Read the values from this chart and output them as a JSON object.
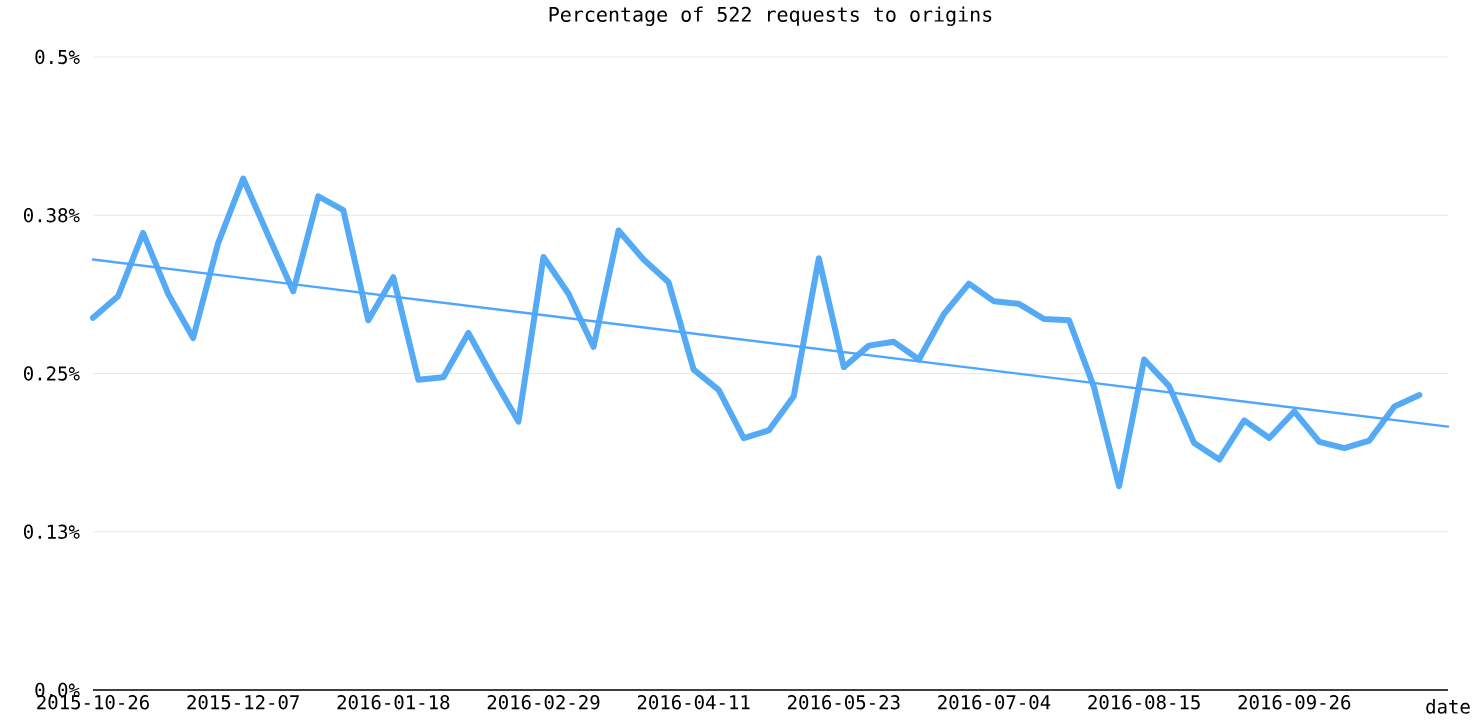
{
  "chart_data": {
    "type": "line",
    "title": "Percentage of 522 requests to origins",
    "xlabel": "date",
    "x": [
      "2015-10-26",
      "2015-11-02",
      "2015-11-09",
      "2015-11-16",
      "2015-11-23",
      "2015-11-30",
      "2015-12-07",
      "2015-12-14",
      "2015-12-21",
      "2015-12-28",
      "2016-01-04",
      "2016-01-11",
      "2016-01-18",
      "2016-01-25",
      "2016-02-01",
      "2016-02-08",
      "2016-02-15",
      "2016-02-22",
      "2016-02-29",
      "2016-03-07",
      "2016-03-14",
      "2016-03-21",
      "2016-03-28",
      "2016-04-04",
      "2016-04-11",
      "2016-04-18",
      "2016-04-25",
      "2016-05-02",
      "2016-05-09",
      "2016-05-16",
      "2016-05-23",
      "2016-05-30",
      "2016-06-06",
      "2016-06-13",
      "2016-06-20",
      "2016-06-27",
      "2016-07-04",
      "2016-07-11",
      "2016-07-18",
      "2016-07-25",
      "2016-08-01",
      "2016-08-08",
      "2016-08-15",
      "2016-08-22",
      "2016-08-29",
      "2016-09-05",
      "2016-09-12",
      "2016-09-19",
      "2016-09-26",
      "2016-10-03",
      "2016-10-10",
      "2016-10-17",
      "2016-10-24",
      "2016-10-31"
    ],
    "series": [
      {
        "color": "#55aaf5",
        "values": [
          0.294,
          0.311,
          0.361,
          0.313,
          0.278,
          0.353,
          0.404,
          0.359,
          0.315,
          0.39,
          0.379,
          0.292,
          0.326,
          0.245,
          0.247,
          0.282,
          0.246,
          0.212,
          0.342,
          0.313,
          0.271,
          0.363,
          0.34,
          0.322,
          0.253,
          0.237,
          0.199,
          0.205,
          0.232,
          0.341,
          0.255,
          0.272,
          0.275,
          0.261,
          0.297,
          0.321,
          0.307,
          0.305,
          0.293,
          0.292,
          0.239,
          0.161,
          0.261,
          0.24,
          0.195,
          0.182,
          0.213,
          0.199,
          0.22,
          0.196,
          0.191,
          0.197,
          0.224,
          0.233
        ]
      },
      {
        "type": "line",
        "color": "#4da6ff",
        "x": [
          "2015-10-26",
          "2016-11-08"
        ],
        "values": [
          0.34,
          0.208
        ]
      }
    ],
    "xlim": [
      "2015-10-26",
      "2016-11-08"
    ],
    "xticks": [
      "2015-10-26",
      "2015-12-07",
      "2016-01-18",
      "2016-02-29",
      "2016-04-11",
      "2016-05-23",
      "2016-07-04",
      "2016-08-15",
      "2016-09-26"
    ],
    "ylim": [
      0,
      0.5
    ],
    "yticks": [
      {
        "value": 0,
        "label": "0.0%"
      },
      {
        "value": 0.125,
        "label": "0.13%"
      },
      {
        "value": 0.25,
        "label": "0.25%"
      },
      {
        "value": 0.375,
        "label": "0.38%"
      },
      {
        "value": 0.5,
        "label": "0.5%"
      }
    ],
    "grid": "y"
  }
}
